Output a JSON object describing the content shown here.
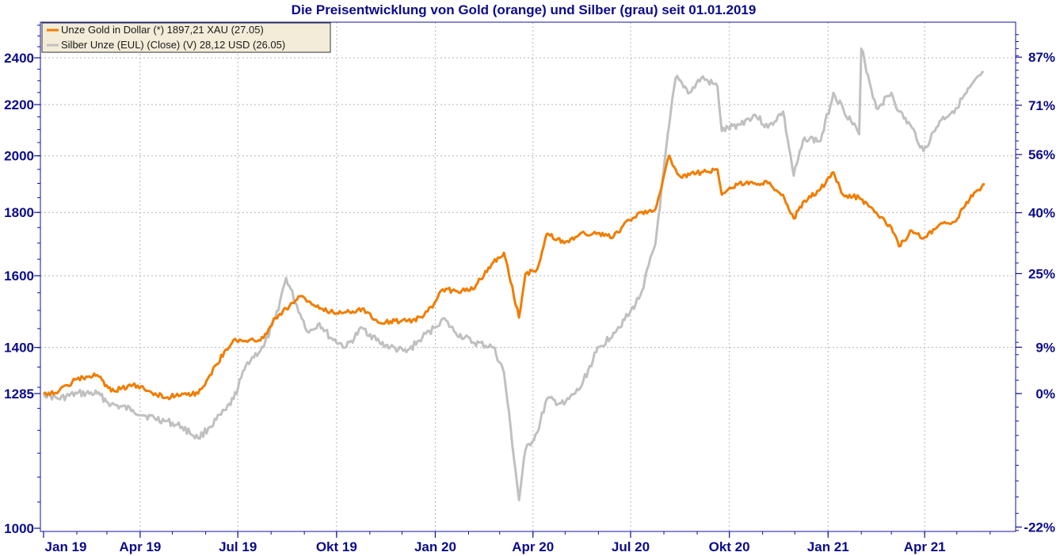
{
  "chart_data": {
    "type": "line",
    "title": "Die Preisentwicklung von Gold (orange) und Silber (grau) seit 01.01.2019",
    "xlabel": "",
    "ylabel": "",
    "x_ticks": [
      "Jan 19",
      "Apr 19",
      "Jul 19",
      "Okt 19",
      "Jan 20",
      "Apr 20",
      "Jul 20",
      "Okt 20",
      "Jan 21",
      "Apr 21"
    ],
    "xlim": [
      "2019-01-01",
      "2021-06-10"
    ],
    "y_left": {
      "ticks": [
        "2400",
        "2200",
        "2000",
        "1800",
        "1600",
        "1400",
        "1285",
        "1000"
      ],
      "tick_values": [
        2400,
        2200,
        2000,
        1800,
        1600,
        1400,
        1285,
        1000
      ],
      "range": [
        1000,
        2400
      ],
      "scale": "log"
    },
    "y_right": {
      "ticks": [
        "87%",
        "71%",
        "56%",
        "40%",
        "25%",
        "9%",
        "0%",
        "-22%"
      ],
      "tick_values": [
        87,
        71,
        56,
        40,
        25,
        9,
        0,
        -22
      ]
    },
    "grid": true,
    "legend_position": "top-left",
    "legend": [
      {
        "label": "Unze Gold in Dollar (*) 1897,21 XAU (27.05)",
        "color": "#f07d00"
      },
      {
        "label": "Silber Unze (EUL) (Close) (V) 28,12 USD (26.05)",
        "color": "#c0c0c0"
      }
    ],
    "series": [
      {
        "name": "Unze Gold in Dollar (*) 1897,21 XAU (27.05)",
        "color": "#f07d00",
        "x": [
          "2019-01-01",
          "2019-01-15",
          "2019-02-01",
          "2019-02-20",
          "2019-03-05",
          "2019-03-25",
          "2019-04-05",
          "2019-04-25",
          "2019-05-10",
          "2019-05-25",
          "2019-06-05",
          "2019-06-20",
          "2019-06-27",
          "2019-07-10",
          "2019-07-25",
          "2019-08-05",
          "2019-08-15",
          "2019-08-28",
          "2019-09-05",
          "2019-09-15",
          "2019-09-25",
          "2019-10-10",
          "2019-10-25",
          "2019-11-10",
          "2019-11-20",
          "2019-12-05",
          "2019-12-20",
          "2019-12-31",
          "2020-01-08",
          "2020-01-20",
          "2020-02-05",
          "2020-02-24",
          "2020-03-05",
          "2020-03-19",
          "2020-03-25",
          "2020-04-05",
          "2020-04-14",
          "2020-04-30",
          "2020-05-15",
          "2020-05-30",
          "2020-06-15",
          "2020-06-30",
          "2020-07-10",
          "2020-07-24",
          "2020-08-06",
          "2020-08-12",
          "2020-08-18",
          "2020-08-25",
          "2020-09-05",
          "2020-09-20",
          "2020-09-24",
          "2020-10-10",
          "2020-10-25",
          "2020-11-06",
          "2020-11-20",
          "2020-11-30",
          "2020-12-10",
          "2020-12-25",
          "2021-01-06",
          "2021-01-15",
          "2021-01-30",
          "2021-02-15",
          "2021-03-01",
          "2021-03-08",
          "2021-03-20",
          "2021-03-31",
          "2021-04-15",
          "2021-04-30",
          "2021-05-10",
          "2021-05-27"
        ],
        "values": [
          1285,
          1290,
          1320,
          1330,
          1290,
          1305,
          1295,
          1275,
          1285,
          1285,
          1330,
          1395,
          1420,
          1415,
          1425,
          1480,
          1505,
          1540,
          1525,
          1505,
          1495,
          1495,
          1505,
          1465,
          1470,
          1470,
          1480,
          1520,
          1560,
          1555,
          1560,
          1640,
          1670,
          1480,
          1605,
          1620,
          1730,
          1700,
          1730,
          1730,
          1720,
          1775,
          1800,
          1810,
          2000,
          1950,
          1920,
          1930,
          1940,
          1950,
          1860,
          1900,
          1900,
          1900,
          1860,
          1780,
          1840,
          1880,
          1940,
          1860,
          1850,
          1800,
          1750,
          1690,
          1740,
          1715,
          1760,
          1770,
          1835,
          1897
        ]
      },
      {
        "name": "Silber Unze (EUL) (Close) (V) 28,12 USD (26.05)",
        "color": "#c0c0c0",
        "x": [
          "2019-01-01",
          "2019-01-15",
          "2019-02-01",
          "2019-02-20",
          "2019-03-05",
          "2019-03-25",
          "2019-04-05",
          "2019-04-25",
          "2019-05-10",
          "2019-05-25",
          "2019-06-05",
          "2019-06-20",
          "2019-06-27",
          "2019-07-10",
          "2019-07-25",
          "2019-08-05",
          "2019-08-15",
          "2019-08-28",
          "2019-09-05",
          "2019-09-15",
          "2019-09-25",
          "2019-10-10",
          "2019-10-25",
          "2019-11-10",
          "2019-11-20",
          "2019-12-05",
          "2019-12-20",
          "2019-12-31",
          "2020-01-08",
          "2020-01-20",
          "2020-02-05",
          "2020-02-24",
          "2020-03-05",
          "2020-03-19",
          "2020-03-25",
          "2020-04-05",
          "2020-04-14",
          "2020-04-30",
          "2020-05-15",
          "2020-05-30",
          "2020-06-15",
          "2020-06-30",
          "2020-07-10",
          "2020-07-24",
          "2020-08-06",
          "2020-08-12",
          "2020-08-18",
          "2020-08-25",
          "2020-09-05",
          "2020-09-20",
          "2020-09-24",
          "2020-10-10",
          "2020-10-25",
          "2020-11-06",
          "2020-11-20",
          "2020-11-30",
          "2020-12-10",
          "2020-12-25",
          "2021-01-06",
          "2021-01-15",
          "2021-01-30",
          "2021-02-01",
          "2021-02-15",
          "2021-03-01",
          "2021-03-08",
          "2021-03-20",
          "2021-03-31",
          "2021-04-15",
          "2021-04-30",
          "2021-05-10",
          "2021-05-26"
        ],
        "values": [
          0,
          -1,
          0,
          0,
          -2,
          -3,
          -4,
          -5,
          -6,
          -8,
          -6,
          -3,
          -1,
          6,
          9,
          15,
          24,
          16,
          12,
          14,
          11,
          9,
          13,
          10,
          9,
          8,
          11,
          13,
          15,
          12,
          10,
          9,
          4,
          -18,
          -10,
          -7,
          -1,
          -2,
          1,
          8,
          12,
          16,
          20,
          32,
          65,
          80,
          78,
          75,
          80,
          77,
          63,
          65,
          68,
          64,
          69,
          50,
          61,
          60,
          75,
          70,
          62,
          90,
          70,
          75,
          69,
          64,
          57,
          66,
          70,
          75,
          82
        ]
      }
    ]
  }
}
